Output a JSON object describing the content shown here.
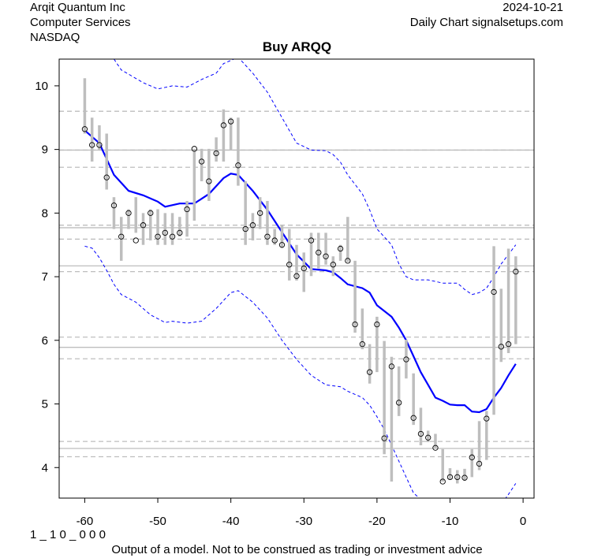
{
  "header": {
    "company": "Arqit Quantum Inc",
    "sector": "Computer Services",
    "exchange": "NASDAQ",
    "date": "2024-10-21",
    "source": "Daily Chart signalsetups.com"
  },
  "footer": {
    "code": "1 _ 1 0 _ 0 0 0",
    "disclaimer": "Output of a model. Not to be construed as trading or investment advice"
  },
  "colors": {
    "bars": "#bebebe",
    "ma": "#0000ff",
    "band": "#0000ff",
    "levels": "#bebebe"
  },
  "chart_data": {
    "type": "line",
    "title": "Buy ARQQ",
    "xlabel": "",
    "ylabel": "",
    "xlim": [
      -63.5,
      1.5
    ],
    "ylim": [
      3.52,
      10.42
    ],
    "x_ticks": [
      -60,
      -50,
      -40,
      -30,
      -20,
      -10,
      0
    ],
    "y_ticks": [
      4,
      5,
      6,
      7,
      8,
      9,
      10
    ],
    "grid": false,
    "bars": {
      "x": [
        -60,
        -59,
        -58,
        -57,
        -56,
        -55,
        -54,
        -53,
        -52,
        -51,
        -50,
        -49,
        -48,
        -47,
        -46,
        -45,
        -44,
        -43,
        -42,
        -41,
        -40,
        -39,
        -38,
        -37,
        -36,
        -35,
        -34,
        -33,
        -32,
        -31,
        -30,
        -29,
        -28,
        -27,
        -26,
        -25,
        -24,
        -23,
        -22,
        -21,
        -20,
        -19,
        -18,
        -17,
        -16,
        -15,
        -14,
        -13,
        -12,
        -11,
        -10,
        -9,
        -8,
        -7,
        -6,
        -5,
        -4,
        -3,
        -2,
        -1
      ],
      "high": [
        10.12,
        9.5,
        9.38,
        9.25,
        8.25,
        7.94,
        8.06,
        8.25,
        8.0,
        8.06,
        8.06,
        8.0,
        8.0,
        7.94,
        8.19,
        9.01,
        9.01,
        9.01,
        9.19,
        9.63,
        9.5,
        9.5,
        8.5,
        8.0,
        8.25,
        8.19,
        7.75,
        7.81,
        7.75,
        7.5,
        7.38,
        7.69,
        7.69,
        7.69,
        7.32,
        7.5,
        7.94,
        7.25,
        6.5,
        5.94,
        6.37,
        5.99,
        5.74,
        5.59,
        6.01,
        5.48,
        4.94,
        4.58,
        4.53,
        4.29,
        3.99,
        3.96,
        3.98,
        4.29,
        4.73,
        4.89,
        7.48,
        6.81,
        7.44,
        7.32
      ],
      "low": [
        9.25,
        8.81,
        8.99,
        8.37,
        7.75,
        7.25,
        7.75,
        7.69,
        7.5,
        7.57,
        7.5,
        7.5,
        7.5,
        7.63,
        7.63,
        7.88,
        8.5,
        8.19,
        8.81,
        8.81,
        8.99,
        8.43,
        7.5,
        7.57,
        7.75,
        7.5,
        7.5,
        7.45,
        6.94,
        6.94,
        6.76,
        7.01,
        7.13,
        7.19,
        7.01,
        7.25,
        7.23,
        6.12,
        5.86,
        5.32,
        5.5,
        4.21,
        3.78,
        4.81,
        5.4,
        4.67,
        4.35,
        4.4,
        4.31,
        3.78,
        3.81,
        3.75,
        3.79,
        3.85,
        3.96,
        4.12,
        4.83,
        5.66,
        5.8,
        5.94
      ],
      "close": [
        9.32,
        9.07,
        9.07,
        8.56,
        8.12,
        7.63,
        8.0,
        7.57,
        7.81,
        8.0,
        7.63,
        7.69,
        7.63,
        7.69,
        8.06,
        9.01,
        8.81,
        8.5,
        8.94,
        9.38,
        9.44,
        8.75,
        7.75,
        7.81,
        8.0,
        7.63,
        7.57,
        7.5,
        7.19,
        7.01,
        7.13,
        7.57,
        7.38,
        7.32,
        7.19,
        7.44,
        7.25,
        6.25,
        5.94,
        5.5,
        6.25,
        4.46,
        5.59,
        5.02,
        5.7,
        4.78,
        4.53,
        4.47,
        4.31,
        3.78,
        3.85,
        3.85,
        3.84,
        4.16,
        4.06,
        4.77,
        6.76,
        5.9,
        5.94,
        7.08
      ]
    },
    "series": [
      {
        "name": "moving-average",
        "x": [
          -60,
          -58,
          -56,
          -54,
          -52,
          -50,
          -49,
          -47,
          -45,
          -43,
          -41,
          -40,
          -39,
          -37,
          -35,
          -33,
          -31,
          -29,
          -27,
          -26,
          -25,
          -24,
          -22,
          -21,
          -20,
          -18,
          -17,
          -16,
          -15,
          -14,
          -13,
          -12,
          -11,
          -10,
          -9,
          -8,
          -7,
          -6,
          -5,
          -4,
          -3,
          -2,
          -1
        ],
        "values": [
          9.3,
          9.1,
          8.6,
          8.35,
          8.28,
          8.18,
          8.1,
          8.15,
          8.15,
          8.3,
          8.55,
          8.62,
          8.6,
          8.35,
          8.05,
          7.7,
          7.35,
          7.12,
          7.1,
          7.07,
          6.98,
          6.88,
          6.82,
          6.75,
          6.55,
          6.37,
          6.2,
          6.0,
          5.75,
          5.5,
          5.3,
          5.1,
          5.05,
          4.99,
          4.98,
          4.98,
          4.88,
          4.87,
          4.92,
          5.1,
          5.25,
          5.45,
          5.63
        ]
      },
      {
        "name": "upper-band",
        "x": [
          -56,
          -55,
          -52,
          -50,
          -48,
          -46,
          -44,
          -42,
          -41,
          -39,
          -37,
          -35,
          -33,
          -31,
          -29,
          -27,
          -26,
          -25,
          -24,
          -22,
          -21,
          -20,
          -18,
          -17,
          -16,
          -15,
          -13,
          -11,
          -9,
          -8,
          -7,
          -6,
          -5,
          -4,
          -3,
          -2,
          -1
        ],
        "values": [
          10.42,
          10.25,
          10.05,
          9.95,
          10.0,
          9.98,
          10.1,
          10.2,
          10.35,
          10.45,
          10.2,
          9.9,
          9.5,
          9.1,
          8.99,
          8.98,
          8.92,
          8.8,
          8.6,
          8.3,
          8.05,
          7.75,
          7.5,
          7.2,
          7.0,
          6.95,
          6.95,
          6.9,
          6.9,
          6.8,
          6.72,
          6.75,
          6.82,
          7.0,
          7.2,
          7.35,
          7.5
        ]
      },
      {
        "name": "lower-band-a",
        "x": [
          -60,
          -59,
          -58,
          -57,
          -56,
          -55,
          -53,
          -51,
          -49,
          -48,
          -46,
          -44,
          -42,
          -40,
          -39,
          -37,
          -35,
          -33,
          -31,
          -29,
          -27,
          -25,
          -24,
          -22,
          -21,
          -20,
          -19,
          -18,
          -17,
          -16,
          -15,
          -14
        ],
        "values": [
          7.48,
          7.45,
          7.3,
          7.1,
          6.88,
          6.72,
          6.6,
          6.4,
          6.28,
          6.3,
          6.27,
          6.3,
          6.5,
          6.75,
          6.78,
          6.6,
          6.35,
          6.0,
          5.7,
          5.45,
          5.3,
          5.27,
          5.2,
          5.1,
          4.98,
          4.8,
          4.6,
          4.35,
          4.1,
          3.85,
          3.6,
          3.5
        ]
      },
      {
        "name": "lower-band-b",
        "x": [
          -2.5,
          -2,
          -1
        ],
        "values": [
          3.5,
          3.58,
          3.75
        ]
      }
    ],
    "levels_solid": [
      8.99,
      7.77,
      7.17,
      5.89,
      4.3
    ],
    "levels_dashed": [
      9.6,
      8.99,
      8.72,
      7.81,
      7.59,
      7.08,
      6.05,
      5.71,
      4.41,
      4.17
    ]
  }
}
